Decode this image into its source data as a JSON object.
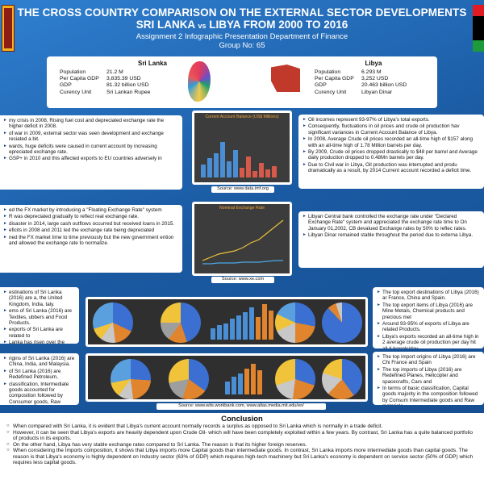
{
  "header": {
    "title": "THE CROSS COUNTRY COMPARISON ON THE EXTERNAL SECTOR DEVELOPMENTS",
    "subtitle_left": "SRI LANKA",
    "subtitle_vs": "vs",
    "subtitle_right": "LIBYA FROM 2000 TO 2016",
    "line1": "Assignment 2 Infographic Presentation Department of Finance",
    "line2": "Group No: 65"
  },
  "sri_lanka": {
    "name": "Sri Lanka",
    "rows": [
      {
        "k": "Population",
        "v": "21.2 M"
      },
      {
        "k": "Per Capita GDP",
        "v": "3,835.39 USD"
      },
      {
        "k": "GDP",
        "v": "81.32 billion USD"
      },
      {
        "k": "Curency Unit",
        "v": "Sri Lankan Rupee"
      }
    ]
  },
  "libya": {
    "name": "Libya",
    "rows": [
      {
        "k": "Population",
        "v": "6.293 M"
      },
      {
        "k": "Per Capita GDP",
        "v": "3,252 USD"
      },
      {
        "k": "GDP",
        "v": "20.463 billion USD"
      },
      {
        "k": "Curency Unit",
        "v": "Libyan Dinar"
      }
    ]
  },
  "section1": {
    "left": [
      "my crisis in 2008, Rising fuel cost and depreciated exchange rate the higher deficit in 2008.",
      "of war in 2009, external sector was seen development and exchange reciated a bit.",
      "wards, huge deficits were caused in current account by increasing epreciated exchange rate.",
      "GSP+ in 2010 and this affected exports to EU countries adversely in"
    ],
    "chart_title": "Current Account Balance (US$ Millions)",
    "source": "Source: www.data.imf.org",
    "right": [
      "Oil incomes represent 93-97% of Libya's total exports.",
      "Consequently, fluctuations in oil prices and crude oil production hav significant variances in Current Account Balance of Libya.",
      "In 2008, Average Crude oil prices recorded an all-time high of $157 along with an all-time high of 1.78 Million barrels per day.",
      "By 2009, Crude oil prices dropped drastically to $48 per barrel and Average daily production dropped to 0.48Mn barrels per day.",
      "Due to Civil war in Libya, Oil production was interrupted and produ dramatically as a result, by 2014 Current account recorded a deficit time."
    ]
  },
  "section2": {
    "left": [
      "ed the FX market by introducing a \"Floating Exchange Rate\" system",
      "R was depreciated gradually to reflect real exchange rate.",
      "disaster in 2014, large cash outflows occurred but received loans in 2015.",
      "eficits in 2008 and 2011 led the exchange rate being depreciated",
      "ned the FX market time to time previously but the new government ention and allowed the exchange rate to normalize."
    ],
    "chart_title": "Nominal Exchange Rate",
    "source": "Source: www.xe.com",
    "right": [
      "Libyan Central bank controlled the exchange rate under \"Declared Exchange Rate\" system and appreciated the exchange rate time to On January 01,2002, CB devalued Exchange rates by 50% to reflec rates.",
      "Libyan Dinar remained stable throughout the period due to externa Libya."
    ]
  },
  "section3": {
    "left": [
      "estinations of Sri Lanka (2016) are a, the United Kingdom, India, taly.",
      "ems of Sri Lanka (2016) are Textiles, ubbers and Food Products.",
      "exports of Sri Lanka are related to",
      "Lanka has risen over the time despite 2010."
    ],
    "right": [
      "The top export destinations of Libya (2016) ar France, China and Spain.",
      "The top export items of Libya (2016) are Mine Metals, Chemical products and precious met",
      "Around 93-95% of exports of Libya are related Products.",
      "Libya's exports recorded an all-time high in 2 average crude oil production per day hit all-ti barrels/day."
    ]
  },
  "section4": {
    "left": [
      "rigins of Sri Lanka (2016) are China, India, and Malaysia.",
      "of Sri Lanka (2016) are Redefined Petroleum,",
      "classification, Intermediate goods accounted for composition followed by Consumer goods, Raw materials."
    ],
    "source": "Source: www.wits.workbank.com, www.atlas.media.mit.edu/en/",
    "right": [
      "The top import origins of Libya (2016) are Chi France and Spain",
      "The top imports of Libya (2016) are Redefined Planes, Helicopter and spacecrafts, Cars and",
      "In terms of basic classification, Capital goods majority in the composition followed by Consum Intermediate goods and Raw materials."
    ]
  },
  "conclusion": {
    "title": "Conclusion",
    "items": [
      "When compared with Sri Lanka, it is evident that Libya's current account normally records a surplus as opposed to Sri Lanka which is normally in a trade deficit.",
      "However, it can be seen that Libya's exports are heavily dependent upon Crude Oil- which will have been completely exploited within a few years. By contrast, Sri Lanka has a quite balanced portfolio of products in its exports.",
      "On the other hand, Libya has very stable exchange rates compared to Sri Lanka. The reason is that its higher foreign reserves.",
      "When considering the Imports composition, it shows that Libya imports more Capital goods than intermediate goods. In contrast, Sri Lanka imports more intermediate goods than capital goods. The reason is that Libya's economy is highly dependent on Industry sector (63% of GDP) which requires high-tech machinery but Sri Lanka's economy is dependent on service sector (50% of GDP) which requires less capital goods."
    ]
  },
  "colors": {
    "background": "#1a5aa2",
    "panel": "#ffffff",
    "chart_bg": "#3c3c3c"
  }
}
